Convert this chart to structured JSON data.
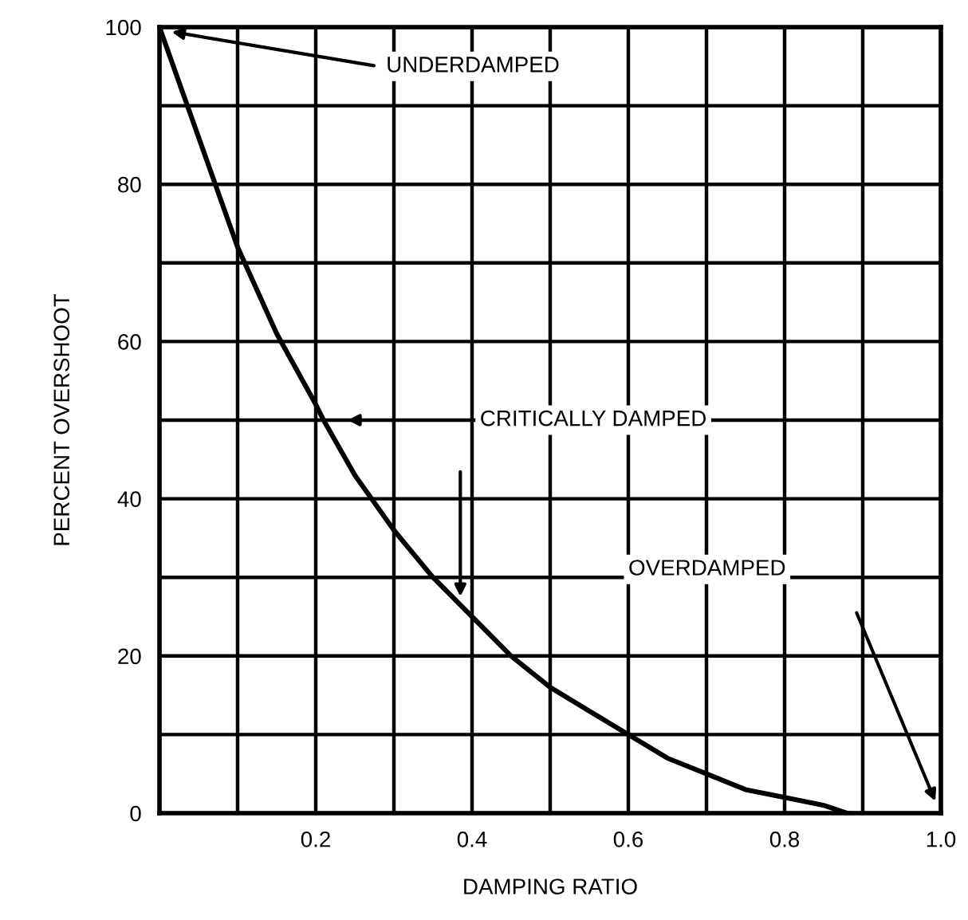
{
  "chart_data": {
    "type": "line",
    "xlabel": "DAMPING RATIO",
    "ylabel": "PERCENT OVERSHOOT",
    "x": [
      0,
      0.05,
      0.1,
      0.15,
      0.2,
      0.21,
      0.25,
      0.3,
      0.35,
      0.4,
      0.45,
      0.5,
      0.55,
      0.6,
      0.65,
      0.7,
      0.75,
      0.8,
      0.85,
      0.88
    ],
    "series": [
      {
        "color": "#000000",
        "values": [
          100,
          86,
          72,
          61,
          52,
          50,
          43,
          36,
          30,
          25,
          20,
          16,
          13,
          10,
          7,
          5,
          3,
          2,
          1,
          0
        ]
      }
    ],
    "xlim": [
      0,
      1.0
    ],
    "ylim": [
      0,
      100
    ],
    "xticks": [
      {
        "value": 0,
        "label": null
      },
      {
        "value": 0.1,
        "label": null
      },
      0.2,
      {
        "value": 0.3,
        "label": null
      },
      0.4,
      {
        "value": 0.5,
        "label": null
      },
      0.6,
      {
        "value": 0.7,
        "label": null
      },
      0.8,
      {
        "value": 0.9,
        "label": null
      },
      {
        "value": 1.0,
        "label": "1.0"
      }
    ],
    "yticks": [
      0,
      {
        "value": 10,
        "label": null
      },
      20,
      {
        "value": 30,
        "label": null
      },
      40,
      {
        "value": 50,
        "label": null
      },
      60,
      {
        "value": 70,
        "label": null
      },
      80,
      {
        "value": 90,
        "label": null
      },
      100
    ],
    "grid": true,
    "marker": "none",
    "line_style": "solid",
    "legend": false,
    "annotations": [
      "UNDERDAMPED",
      "CRITICALLY DAMPED",
      "OVERDAMPED"
    ]
  }
}
